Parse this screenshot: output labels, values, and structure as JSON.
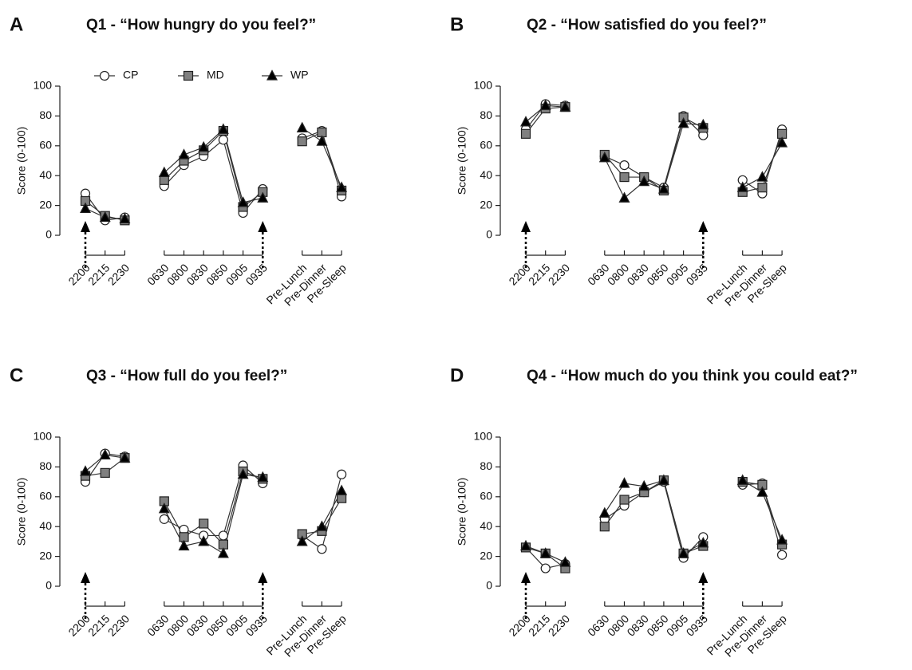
{
  "chart_data": [
    {
      "type": "line",
      "panel": "A",
      "title": "Q1 - “How hungry do you feel?”",
      "y_label": "Score (0-100)",
      "categories": [
        "2200",
        "2215",
        "2230",
        null,
        "0630",
        "0800",
        "0830",
        "0850",
        "0905",
        "0935",
        null,
        "Pre-Lunch",
        "Pre-Dinner",
        "Pre-Sleep"
      ],
      "ylim": [
        0,
        100
      ],
      "yticks": [
        0,
        20,
        40,
        60,
        80,
        100
      ],
      "legend": "top",
      "series": [
        {
          "name": "CP",
          "color": "#ffffff",
          "marker": "circle",
          "values": [
            28,
            10,
            12,
            null,
            33,
            47,
            53,
            64,
            15,
            31,
            null,
            65,
            70,
            26
          ]
        },
        {
          "name": "MD",
          "color": "#808080",
          "marker": "square",
          "values": [
            23,
            13,
            10,
            null,
            37,
            50,
            57,
            70,
            19,
            29,
            null,
            63,
            69,
            30
          ]
        },
        {
          "name": "WP",
          "color": "#000000",
          "marker": "triangle",
          "values": [
            18,
            12,
            11,
            null,
            42,
            54,
            59,
            71,
            22,
            25,
            null,
            72,
            63,
            32
          ]
        }
      ]
    },
    {
      "type": "line",
      "panel": "B",
      "title": "Q2 - “How satisfied do you feel?”",
      "y_label": "Score (0-100)",
      "categories": [
        "2200",
        "2215",
        "2230",
        null,
        "0630",
        "0800",
        "0830",
        "0850",
        "0905",
        "0935",
        null,
        "Pre-Lunch",
        "Pre-Dinner",
        "Pre-Sleep"
      ],
      "ylim": [
        0,
        100
      ],
      "yticks": [
        0,
        20,
        40,
        60,
        80,
        100
      ],
      "series": [
        {
          "name": "CP",
          "color": "#ffffff",
          "marker": "circle",
          "values": [
            71,
            88,
            87,
            null,
            53,
            47,
            39,
            32,
            80,
            67,
            null,
            37,
            28,
            71
          ]
        },
        {
          "name": "MD",
          "color": "#808080",
          "marker": "square",
          "values": [
            68,
            85,
            86,
            null,
            54,
            39,
            39,
            30,
            79,
            72,
            null,
            29,
            32,
            68
          ]
        },
        {
          "name": "WP",
          "color": "#000000",
          "marker": "triangle",
          "values": [
            76,
            87,
            86,
            null,
            52,
            25,
            36,
            31,
            75,
            74,
            null,
            32,
            39,
            62
          ]
        }
      ]
    },
    {
      "type": "line",
      "panel": "C",
      "title": "Q3 - “How full do you feel?”",
      "y_label": "Score (0-100)",
      "categories": [
        "2200",
        "2215",
        "2230",
        null,
        "0630",
        "0800",
        "0830",
        "0850",
        "0905",
        "0935",
        null,
        "Pre-Lunch",
        "Pre-Dinner",
        "Pre-Sleep"
      ],
      "ylim": [
        0,
        100
      ],
      "yticks": [
        0,
        20,
        40,
        60,
        80,
        100
      ],
      "series": [
        {
          "name": "CP",
          "color": "#ffffff",
          "marker": "circle",
          "values": [
            70,
            89,
            87,
            null,
            45,
            38,
            34,
            34,
            81,
            69,
            null,
            34,
            25,
            75
          ]
        },
        {
          "name": "MD",
          "color": "#808080",
          "marker": "square",
          "values": [
            74,
            76,
            86,
            null,
            57,
            33,
            42,
            28,
            77,
            72,
            null,
            35,
            37,
            59
          ]
        },
        {
          "name": "WP",
          "color": "#000000",
          "marker": "triangle",
          "values": [
            77,
            88,
            86,
            null,
            52,
            27,
            30,
            22,
            75,
            73,
            null,
            30,
            40,
            64
          ]
        }
      ]
    },
    {
      "type": "line",
      "panel": "D",
      "title": "Q4 - “How much do you think you could eat?”",
      "y_label": "Score (0-100)",
      "categories": [
        "2200",
        "2215",
        "2230",
        null,
        "0630",
        "0800",
        "0830",
        "0850",
        "0905",
        "0935",
        null,
        "Pre-Lunch",
        "Pre-Dinner",
        "Pre-Sleep"
      ],
      "ylim": [
        0,
        100
      ],
      "yticks": [
        0,
        20,
        40,
        60,
        80,
        100
      ],
      "series": [
        {
          "name": "CP",
          "color": "#ffffff",
          "marker": "circle",
          "values": [
            26,
            12,
            15,
            null,
            45,
            54,
            63,
            70,
            19,
            33,
            null,
            68,
            69,
            21
          ]
        },
        {
          "name": "MD",
          "color": "#808080",
          "marker": "square",
          "values": [
            26,
            22,
            12,
            null,
            40,
            58,
            63,
            71,
            22,
            27,
            null,
            70,
            68,
            28
          ]
        },
        {
          "name": "WP",
          "color": "#000000",
          "marker": "triangle",
          "values": [
            27,
            22,
            16,
            null,
            49,
            69,
            67,
            71,
            22,
            29,
            null,
            71,
            63,
            31
          ]
        }
      ]
    }
  ]
}
